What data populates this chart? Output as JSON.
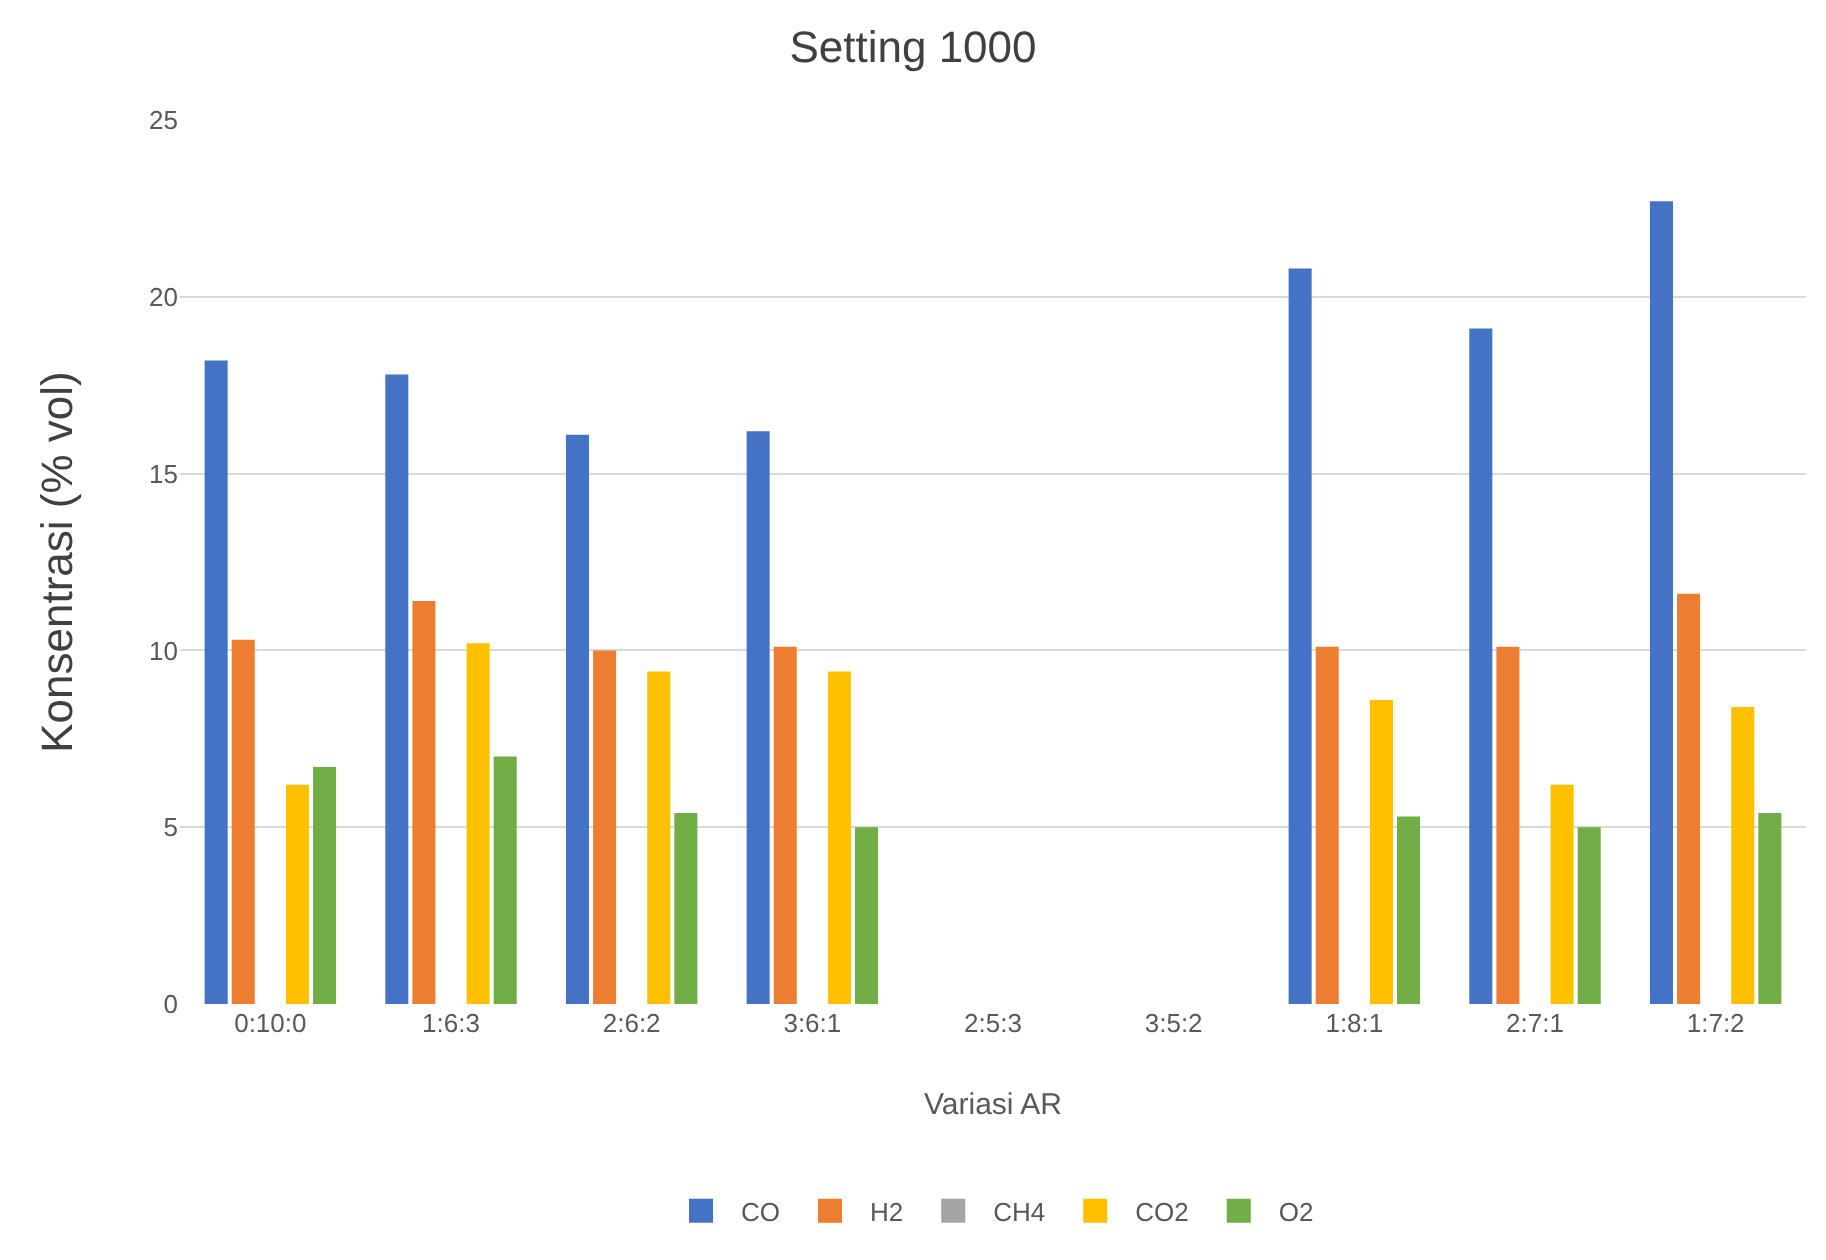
{
  "chart_data": {
    "type": "bar",
    "title": "Setting 1000",
    "xlabel": "Variasi AR",
    "ylabel": "Konsentrasi (% vol)",
    "categories": [
      "0:10:0",
      "1:6:3",
      "2:6:2",
      "3:6:1",
      "2:5:3",
      "3:5:2",
      "1:8:1",
      "2:7:1",
      "1:7:2"
    ],
    "series": [
      {
        "name": "CO",
        "color": "#4472c4",
        "values": [
          18.2,
          17.8,
          16.1,
          16.2,
          null,
          null,
          20.8,
          19.1,
          22.7
        ]
      },
      {
        "name": "H2",
        "color": "#ed7d31",
        "values": [
          10.3,
          11.4,
          10.0,
          10.1,
          null,
          null,
          10.1,
          10.1,
          11.6
        ]
      },
      {
        "name": "CH4",
        "color": "#a5a5a5",
        "values": [
          null,
          null,
          null,
          null,
          null,
          null,
          null,
          null,
          null
        ]
      },
      {
        "name": "CO2",
        "color": "#ffc000",
        "values": [
          6.2,
          10.2,
          9.4,
          9.4,
          null,
          null,
          8.6,
          6.2,
          8.4
        ]
      },
      {
        "name": "O2",
        "color": "#70ad47",
        "values": [
          6.7,
          7.0,
          5.4,
          5.0,
          null,
          null,
          5.3,
          5.0,
          5.4
        ]
      }
    ],
    "ylim": [
      0,
      25
    ],
    "yticks": [
      0,
      5,
      10,
      15,
      20,
      25
    ],
    "grid": "y",
    "legend": "bottom"
  }
}
